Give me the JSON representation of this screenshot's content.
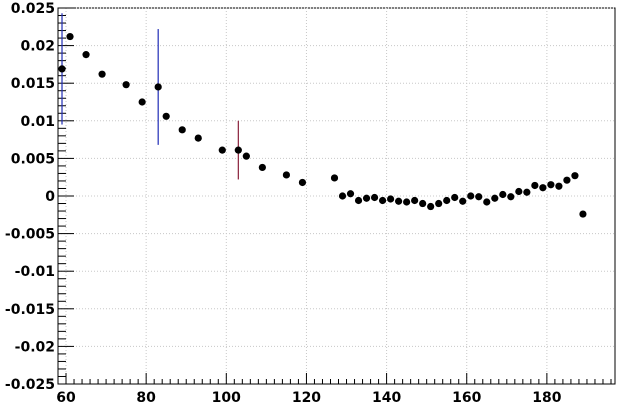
{
  "chart_data": {
    "type": "scatter",
    "title": "",
    "xlabel": "",
    "ylabel": "",
    "xlim": [
      58,
      197
    ],
    "ylim": [
      -0.025,
      0.025
    ],
    "grid": true,
    "legend": "none",
    "colors": {
      "marker": "#000000",
      "error_bar": "#1f2bb5",
      "error_bar_alt": "#8a1f3a",
      "grid": "#c8c8c8",
      "axis": "#000000"
    },
    "x_ticks": [
      60,
      80,
      100,
      120,
      140,
      160,
      180
    ],
    "x_tick_labels": [
      "60",
      "80",
      "100",
      "120",
      "140",
      "160",
      "180"
    ],
    "y_ticks": [
      0.025,
      0.02,
      0.015,
      0.01,
      0.005,
      0,
      -0.005,
      -0.01,
      -0.015,
      -0.02,
      -0.025
    ],
    "y_tick_labels": [
      "0.025",
      "0.02",
      "0.015",
      "0.01",
      "0.005",
      "0",
      "-0.005",
      "-0.01",
      "-0.015",
      "-0.02",
      "-0.025"
    ],
    "series": [
      {
        "points": [
          {
            "x": 59,
            "y": 0.0169,
            "err": 0.0074
          },
          {
            "x": 61,
            "y": 0.0212
          },
          {
            "x": 65,
            "y": 0.0188
          },
          {
            "x": 69,
            "y": 0.0162
          },
          {
            "x": 75,
            "y": 0.0148
          },
          {
            "x": 79,
            "y": 0.0125
          },
          {
            "x": 83,
            "y": 0.0145,
            "err": 0.0077
          },
          {
            "x": 85,
            "y": 0.0106
          },
          {
            "x": 89,
            "y": 0.0088
          },
          {
            "x": 93,
            "y": 0.0077
          },
          {
            "x": 99,
            "y": 0.0061
          },
          {
            "x": 103,
            "y": 0.0061,
            "err": 0.0039,
            "err_color": "alt"
          },
          {
            "x": 105,
            "y": 0.0053
          },
          {
            "x": 109,
            "y": 0.0038
          },
          {
            "x": 115,
            "y": 0.0028
          },
          {
            "x": 119,
            "y": 0.0018
          },
          {
            "x": 127,
            "y": 0.0024
          },
          {
            "x": 129,
            "y": 0.0
          },
          {
            "x": 131,
            "y": 0.0003
          },
          {
            "x": 133,
            "y": -0.0006
          },
          {
            "x": 135,
            "y": -0.0003
          },
          {
            "x": 137,
            "y": -0.0002
          },
          {
            "x": 139,
            "y": -0.0006
          },
          {
            "x": 141,
            "y": -0.0004
          },
          {
            "x": 143,
            "y": -0.0007
          },
          {
            "x": 145,
            "y": -0.0008
          },
          {
            "x": 147,
            "y": -0.0006
          },
          {
            "x": 149,
            "y": -0.001
          },
          {
            "x": 151,
            "y": -0.0014
          },
          {
            "x": 153,
            "y": -0.001
          },
          {
            "x": 155,
            "y": -0.0006
          },
          {
            "x": 157,
            "y": -0.0002
          },
          {
            "x": 159,
            "y": -0.0007
          },
          {
            "x": 161,
            "y": 0.0
          },
          {
            "x": 163,
            "y": -0.0001
          },
          {
            "x": 165,
            "y": -0.0008
          },
          {
            "x": 167,
            "y": -0.0003
          },
          {
            "x": 169,
            "y": 0.0002
          },
          {
            "x": 171,
            "y": -0.0001
          },
          {
            "x": 173,
            "y": 0.0006
          },
          {
            "x": 175,
            "y": 0.0005
          },
          {
            "x": 177,
            "y": 0.0014
          },
          {
            "x": 179,
            "y": 0.0011
          },
          {
            "x": 181,
            "y": 0.0015
          },
          {
            "x": 183,
            "y": 0.0013
          },
          {
            "x": 185,
            "y": 0.0021
          },
          {
            "x": 187,
            "y": 0.0027
          },
          {
            "x": 189,
            "y": -0.0024
          }
        ]
      }
    ]
  }
}
